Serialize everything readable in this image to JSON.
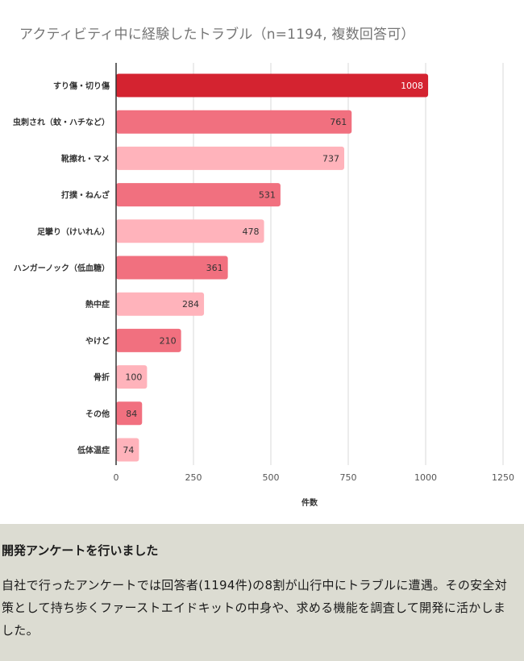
{
  "chart_data": {
    "type": "bar",
    "orientation": "horizontal",
    "title": "アクティビティ中に経験したトラブル（n=1194, 複数回答可）",
    "xlabel": "件数",
    "ylabel": "",
    "xlim": [
      0,
      1250
    ],
    "xticks": [
      0,
      250,
      500,
      750,
      1000,
      1250
    ],
    "grid": true,
    "categories": [
      "すり傷・切り傷",
      "虫刺され（蚊・ハチなど）",
      "靴擦れ・マメ",
      "打撲・ねんざ",
      "足攣り（けいれん）",
      "ハンガーノック（低血糖）",
      "熱中症",
      "やけど",
      "骨折",
      "その他",
      "低体温症"
    ],
    "values": [
      1008,
      761,
      737,
      531,
      478,
      361,
      284,
      210,
      100,
      84,
      74
    ],
    "colors": [
      "#d42330",
      "#f1707f",
      "#ffb3bb",
      "#f1707f",
      "#ffb3bb",
      "#f1707f",
      "#ffb3bb",
      "#f1707f",
      "#ffb3bb",
      "#f1707f",
      "#ffb3bb"
    ],
    "data_labels": [
      "1008",
      "761",
      "737",
      "531",
      "478",
      "361",
      "284",
      "210",
      "100",
      "84",
      "74"
    ]
  },
  "info": {
    "heading": "開発アンケートを行いました",
    "body": "自社で行ったアンケートでは回答者(1194件)の8割が山行中にトラブルに遭遇。その安全対策として持ち歩くファーストエイドキットの中身や、求める機能を調査して開発に活かしました。"
  }
}
